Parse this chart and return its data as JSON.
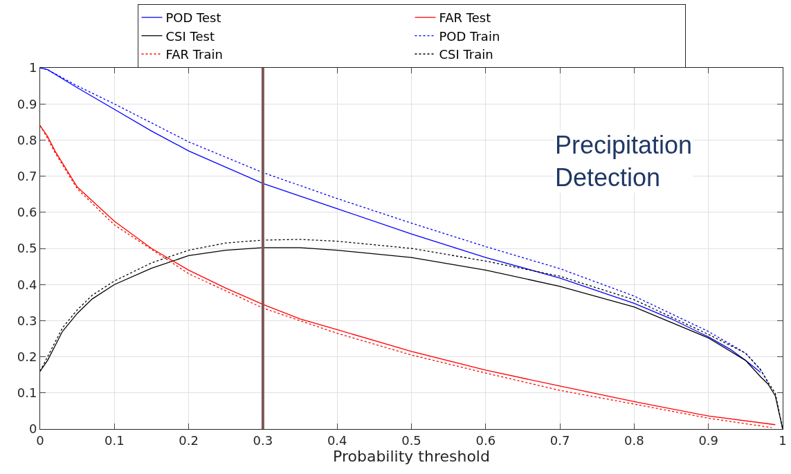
{
  "chart_data": {
    "type": "line",
    "xlabel": "Probability threshold",
    "xlim": [
      0,
      1
    ],
    "ylim": [
      0,
      1
    ],
    "xticks": [
      0,
      0.1,
      0.2,
      0.3,
      0.4,
      0.5,
      0.6,
      0.7,
      0.8,
      0.9,
      1
    ],
    "yticks": [
      0,
      0.1,
      0.2,
      0.3,
      0.4,
      0.5,
      0.6,
      0.7,
      0.8,
      0.9,
      1
    ],
    "grid": true,
    "legend": "top",
    "marker": "none",
    "ref_lines": [
      {
        "axis": "x",
        "value": 0.3,
        "label": null,
        "color": "#7f5656"
      }
    ],
    "annotations": [
      "Precipitation\nDetection"
    ],
    "series": [
      {
        "name": "POD Test",
        "color": "#0000ff",
        "line_style": "solid",
        "x": [
          0,
          0.01,
          0.05,
          0.1,
          0.15,
          0.2,
          0.25,
          0.3,
          0.35,
          0.4,
          0.5,
          0.6,
          0.7,
          0.8,
          0.85,
          0.9,
          0.93,
          0.95,
          0.97
        ],
        "values": [
          1.0,
          0.995,
          0.945,
          0.885,
          0.825,
          0.77,
          0.725,
          0.68,
          0.645,
          0.61,
          0.54,
          0.475,
          0.418,
          0.348,
          0.305,
          0.255,
          0.22,
          0.19,
          0.157
        ]
      },
      {
        "name": "FAR Test",
        "color": "#ff0000",
        "line_style": "solid",
        "x": [
          0,
          0.01,
          0.02,
          0.05,
          0.1,
          0.15,
          0.2,
          0.25,
          0.3,
          0.35,
          0.4,
          0.5,
          0.6,
          0.7,
          0.8,
          0.9,
          0.99
        ],
        "values": [
          0.84,
          0.81,
          0.77,
          0.67,
          0.575,
          0.5,
          0.44,
          0.39,
          0.345,
          0.305,
          0.275,
          0.215,
          0.163,
          0.119,
          0.076,
          0.036,
          0.012
        ]
      },
      {
        "name": "CSI Test",
        "color": "#000000",
        "line_style": "solid",
        "x": [
          0,
          0.01,
          0.02,
          0.03,
          0.05,
          0.07,
          0.1,
          0.15,
          0.2,
          0.25,
          0.3,
          0.35,
          0.4,
          0.5,
          0.6,
          0.7,
          0.8,
          0.9,
          0.95,
          0.97,
          0.98,
          0.99,
          1
        ],
        "values": [
          0.16,
          0.19,
          0.23,
          0.27,
          0.32,
          0.36,
          0.4,
          0.445,
          0.48,
          0.495,
          0.502,
          0.502,
          0.495,
          0.475,
          0.44,
          0.395,
          0.338,
          0.252,
          0.19,
          0.145,
          0.125,
          0.092,
          0
        ]
      },
      {
        "name": "POD Train",
        "color": "#0000ff",
        "line_style": "dotted",
        "x": [
          0,
          0.01,
          0.05,
          0.1,
          0.2,
          0.3,
          0.4,
          0.5,
          0.6,
          0.7,
          0.8,
          0.9,
          0.95,
          0.97,
          0.98
        ],
        "values": [
          1.0,
          0.995,
          0.95,
          0.9,
          0.795,
          0.71,
          0.638,
          0.57,
          0.505,
          0.444,
          0.368,
          0.27,
          0.21,
          0.165,
          0.13
        ]
      },
      {
        "name": "FAR Train",
        "color": "#ff0000",
        "line_style": "dotted",
        "x": [
          0,
          0.01,
          0.02,
          0.05,
          0.1,
          0.2,
          0.3,
          0.4,
          0.5,
          0.6,
          0.7,
          0.8,
          0.9,
          0.985
        ],
        "values": [
          0.84,
          0.805,
          0.765,
          0.665,
          0.565,
          0.43,
          0.335,
          0.265,
          0.205,
          0.155,
          0.107,
          0.069,
          0.03,
          0.004
        ]
      },
      {
        "name": "CSI Train",
        "color": "#000000",
        "line_style": "dotted",
        "x": [
          0,
          0.01,
          0.02,
          0.03,
          0.05,
          0.07,
          0.1,
          0.15,
          0.2,
          0.25,
          0.3,
          0.35,
          0.4,
          0.5,
          0.6,
          0.7,
          0.8,
          0.9,
          0.95,
          0.97,
          0.98,
          0.99,
          1
        ],
        "values": [
          0.16,
          0.2,
          0.24,
          0.28,
          0.33,
          0.37,
          0.41,
          0.46,
          0.495,
          0.515,
          0.523,
          0.525,
          0.52,
          0.5,
          0.465,
          0.423,
          0.358,
          0.262,
          0.21,
          0.165,
          0.13,
          0.1,
          0
        ]
      }
    ]
  }
}
